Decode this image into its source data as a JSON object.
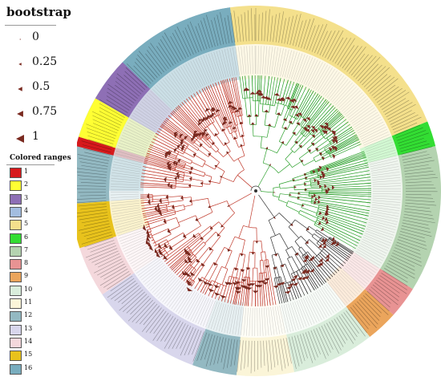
{
  "legend": {
    "bootstrap_title": "bootstrap",
    "bootstrap_items": [
      {
        "label": "0",
        "scale": 0.15
      },
      {
        "label": "0.25",
        "scale": 0.35
      },
      {
        "label": "0.5",
        "scale": 0.55
      },
      {
        "label": "0.75",
        "scale": 0.78
      },
      {
        "label": "1",
        "scale": 1.0
      }
    ],
    "colored_ranges_title": "Colored ranges",
    "ranges": [
      {
        "label": "1",
        "color": "#d7191c"
      },
      {
        "label": "2",
        "color": "#ffff33"
      },
      {
        "label": "3",
        "color": "#8e6fb5"
      },
      {
        "label": "4",
        "color": "#a3bde0"
      },
      {
        "label": "5",
        "color": "#f4e08c"
      },
      {
        "label": "6",
        "color": "#33dd33"
      },
      {
        "label": "7",
        "color": "#b4d3b0"
      },
      {
        "label": "8",
        "color": "#e89393"
      },
      {
        "label": "9",
        "color": "#eba55c"
      },
      {
        "label": "10",
        "color": "#d9eddb"
      },
      {
        "label": "11",
        "color": "#fbf5d8"
      },
      {
        "label": "12",
        "color": "#93b9c2"
      },
      {
        "label": "13",
        "color": "#d8d6ec"
      },
      {
        "label": "14",
        "color": "#f4d8dc"
      },
      {
        "label": "15",
        "color": "#e8c21c"
      },
      {
        "label": "16",
        "color": "#79adbe"
      }
    ]
  },
  "tree": {
    "outer_ring": [
      {
        "range": "16",
        "from": 270,
        "to": 352
      },
      {
        "range": "5",
        "from": 352,
        "to": 68
      },
      {
        "range": "6",
        "from": 68,
        "to": 76
      },
      {
        "range": "7",
        "from": 76,
        "to": 122
      },
      {
        "range": "8",
        "from": 122,
        "to": 132
      },
      {
        "range": "9",
        "from": 132,
        "to": 142
      },
      {
        "range": "10",
        "from": 142,
        "to": 168
      },
      {
        "range": "11",
        "from": 168,
        "to": 186
      },
      {
        "range": "12",
        "from": 186,
        "to": 200
      },
      {
        "range": "13",
        "from": 200,
        "to": 236
      },
      {
        "range": "14",
        "from": 236,
        "to": 252
      },
      {
        "range": "15",
        "from": 252,
        "to": 266
      },
      {
        "range": "12",
        "from": 266,
        "to": 284
      },
      {
        "range": "1",
        "from": 284,
        "to": 287
      },
      {
        "range": "2",
        "from": 287,
        "to": 300
      },
      {
        "range": "3",
        "from": 300,
        "to": 314
      },
      {
        "range": "16",
        "from": 314,
        "to": 352
      }
    ],
    "branch_colors": {
      "red": "#c0392b",
      "green": "#2ca02c",
      "dark": "#333333"
    }
  }
}
